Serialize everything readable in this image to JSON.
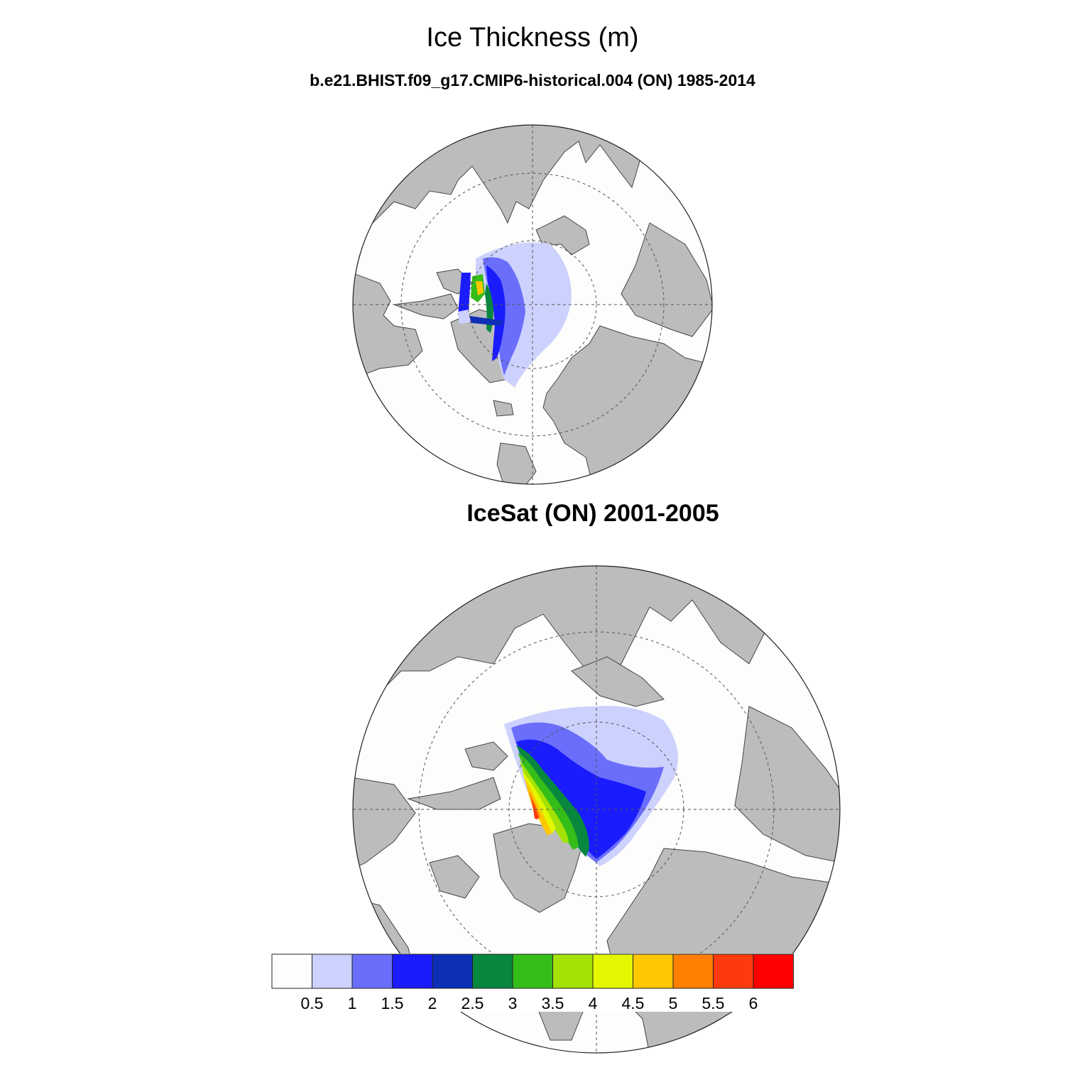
{
  "title": "Ice Thickness (m)",
  "panels": [
    {
      "name": "model",
      "title": "b.e21.BHIST.f09_g17.CMIP6-historical.004 (ON) 1985-2014"
    },
    {
      "name": "observation",
      "title": "IceSat (ON) 2001-2005"
    }
  ],
  "colors": {
    "land": "#bcbcbc",
    "ocean": "#fdfdfb",
    "grid": "#555555"
  },
  "colorbar": {
    "labels": [
      "0.5",
      "1",
      "1.5",
      "2",
      "2.5",
      "3",
      "3.5",
      "4",
      "4.5",
      "5",
      "5.5",
      "6"
    ],
    "colors": [
      "#fdfdfb",
      "#cdd1fd",
      "#6a6efa",
      "#1a1cfc",
      "#0d2fb5",
      "#08873f",
      "#35bd19",
      "#a4e106",
      "#e2f700",
      "#fec700",
      "#fe7f01",
      "#fd3a0b",
      "#fe0002"
    ]
  }
}
